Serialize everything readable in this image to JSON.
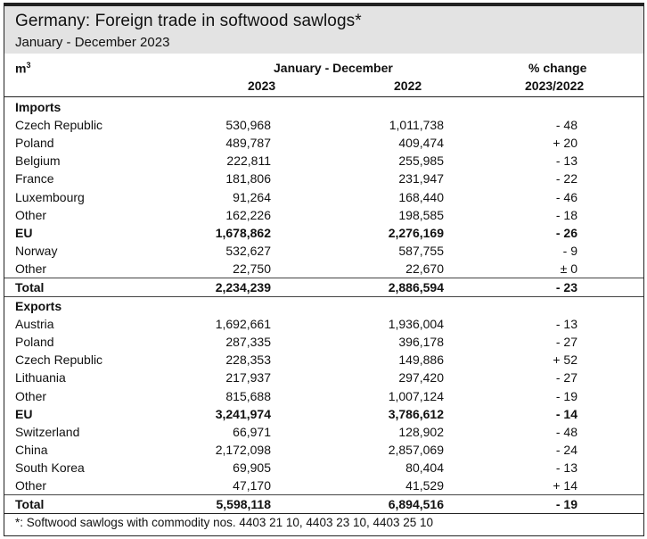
{
  "title": "Germany: Foreign trade in softwood sawlogs*",
  "subtitle": "January - December 2023",
  "columns": {
    "unit": "m",
    "unit_sup": "3",
    "period": "January - December",
    "year1": "2023",
    "year2": "2022",
    "change_line1": "% change",
    "change_line2": "2023/2022"
  },
  "rows": [
    {
      "kind": "section",
      "label": "Imports",
      "v2023": "",
      "v2022": "",
      "change": ""
    },
    {
      "kind": "item",
      "label": "Czech Republic",
      "v2023": "530,968",
      "v2022": "1,011,738",
      "change": "- 48"
    },
    {
      "kind": "item",
      "label": "Poland",
      "v2023": "489,787",
      "v2022": "409,474",
      "change": "+ 20"
    },
    {
      "kind": "item",
      "label": "Belgium",
      "v2023": "222,811",
      "v2022": "255,985",
      "change": "- 13"
    },
    {
      "kind": "item",
      "label": "France",
      "v2023": "181,806",
      "v2022": "231,947",
      "change": "- 22"
    },
    {
      "kind": "item",
      "label": "Luxembourg",
      "v2023": "91,264",
      "v2022": "168,440",
      "change": "- 46"
    },
    {
      "kind": "item",
      "label": "Other",
      "v2023": "162,226",
      "v2022": "198,585",
      "change": "- 18"
    },
    {
      "kind": "subtotal",
      "label": "EU",
      "v2023": "1,678,862",
      "v2022": "2,276,169",
      "change": "- 26"
    },
    {
      "kind": "item",
      "label": "Norway",
      "v2023": "532,627",
      "v2022": "587,755",
      "change": "- 9"
    },
    {
      "kind": "item",
      "label": "Other",
      "v2023": "22,750",
      "v2022": "22,670",
      "change": "± 0"
    },
    {
      "kind": "total",
      "label": "Total",
      "v2023": "2,234,239",
      "v2022": "2,886,594",
      "change": "- 23"
    },
    {
      "kind": "section",
      "label": "Exports",
      "v2023": "",
      "v2022": "",
      "change": ""
    },
    {
      "kind": "item",
      "label": "Austria",
      "v2023": "1,692,661",
      "v2022": "1,936,004",
      "change": "- 13"
    },
    {
      "kind": "item",
      "label": "Poland",
      "v2023": "287,335",
      "v2022": "396,178",
      "change": "- 27"
    },
    {
      "kind": "item",
      "label": "Czech Republic",
      "v2023": "228,353",
      "v2022": "149,886",
      "change": "+ 52"
    },
    {
      "kind": "item",
      "label": "Lithuania",
      "v2023": "217,937",
      "v2022": "297,420",
      "change": "- 27"
    },
    {
      "kind": "item",
      "label": "Other",
      "v2023": "815,688",
      "v2022": "1,007,124",
      "change": "- 19"
    },
    {
      "kind": "subtotal",
      "label": "EU",
      "v2023": "3,241,974",
      "v2022": "3,786,612",
      "change": "- 14"
    },
    {
      "kind": "item",
      "label": "Switzerland",
      "v2023": "66,971",
      "v2022": "128,902",
      "change": "- 48"
    },
    {
      "kind": "item",
      "label": "China",
      "v2023": "2,172,098",
      "v2022": "2,857,069",
      "change": "- 24"
    },
    {
      "kind": "item",
      "label": "South Korea",
      "v2023": "69,905",
      "v2022": "80,404",
      "change": "- 13"
    },
    {
      "kind": "item",
      "label": "Other",
      "v2023": "47,170",
      "v2022": "41,529",
      "change": "+ 14"
    },
    {
      "kind": "total",
      "label": "Total",
      "v2023": "5,598,118",
      "v2022": "6,894,516",
      "change": "- 19"
    }
  ],
  "footnote": "*: Softwood sawlogs with commodity nos. 4403 21 10, 4403 23 10, 4403 25 10"
}
